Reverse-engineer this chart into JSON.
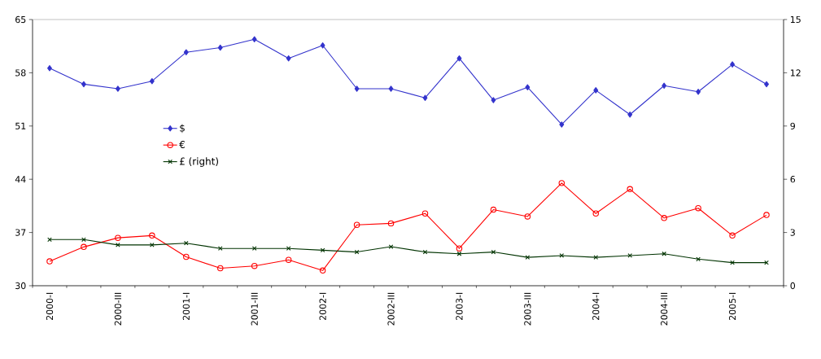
{
  "chart_data": {
    "type": "line",
    "categories": [
      "2000-I",
      null,
      "2000-III",
      null,
      "2001-I",
      null,
      "2001-III",
      null,
      "2002-I",
      null,
      "2002-III",
      null,
      "2003-I",
      null,
      "2003-III",
      null,
      "2004-I",
      null,
      "2004-III",
      null,
      "2005-I",
      null
    ],
    "series": [
      {
        "name": "$",
        "color": "#3333cc",
        "marker": "diamond",
        "values": [
          58.6,
          56.5,
          55.9,
          56.9,
          60.7,
          61.3,
          62.4,
          59.9,
          61.6,
          55.9,
          55.9,
          54.7,
          59.9,
          54.4,
          56.1,
          51.2,
          55.7,
          52.5,
          56.3,
          55.5,
          59.1,
          56.5
        ]
      },
      {
        "name": "€",
        "color": "#ff0000",
        "marker": "circle",
        "values": [
          33.2,
          35.1,
          36.3,
          36.6,
          33.8,
          32.3,
          32.6,
          33.4,
          32.0,
          38.0,
          38.2,
          39.5,
          34.9,
          40.0,
          39.1,
          43.5,
          39.5,
          42.7,
          38.9,
          40.2,
          36.6,
          39.3
        ]
      },
      {
        "name": "£ (right)",
        "color": "#003300",
        "marker": "cross",
        "axis": "y2",
        "values": [
          2.6,
          2.6,
          2.3,
          2.3,
          2.4,
          2.1,
          2.1,
          2.1,
          2.0,
          1.9,
          2.2,
          1.9,
          1.8,
          1.9,
          1.6,
          1.7,
          1.6,
          1.7,
          1.8,
          1.5,
          1.3,
          1.3
        ]
      }
    ],
    "ylim": [
      30,
      65
    ],
    "yticks": [
      30,
      37,
      44,
      51,
      58,
      65
    ],
    "y2lim": [
      0,
      15
    ],
    "y2ticks": [
      0,
      3,
      6,
      9,
      12,
      15
    ],
    "legend": "left",
    "grid": false
  }
}
